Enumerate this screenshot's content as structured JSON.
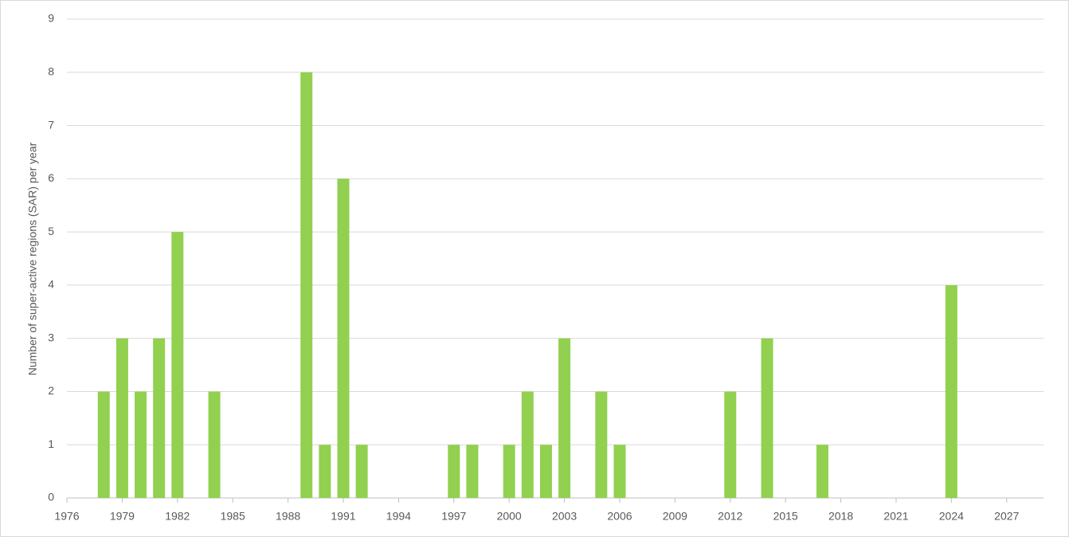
{
  "chart_data": {
    "type": "bar",
    "y_label": "Number of super-active regions (SAR) per year",
    "x": [
      1978,
      1979,
      1980,
      1981,
      1982,
      1984,
      1989,
      1990,
      1991,
      1992,
      1997,
      1998,
      2000,
      2001,
      2002,
      2003,
      2005,
      2006,
      2012,
      2014,
      2017,
      2024
    ],
    "values": [
      2,
      3,
      2,
      3,
      5,
      2,
      8,
      1,
      6,
      1,
      1,
      1,
      1,
      2,
      1,
      3,
      2,
      1,
      2,
      3,
      1,
      4
    ],
    "color": "#92d050",
    "xlim": [
      1976,
      2029
    ],
    "xticks": [
      1976,
      1979,
      1982,
      1985,
      1988,
      1991,
      1994,
      1997,
      2000,
      2003,
      2006,
      2009,
      2012,
      2015,
      2018,
      2021,
      2024,
      2027
    ],
    "ylim": [
      0,
      9
    ],
    "yticks": [
      0,
      1,
      2,
      3,
      4,
      5,
      6,
      7,
      8,
      9
    ],
    "grid": true
  }
}
